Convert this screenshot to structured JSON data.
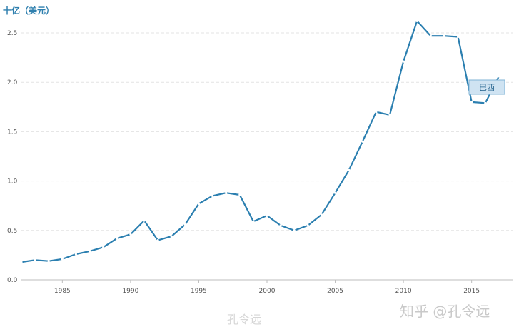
{
  "chart_data": {
    "type": "line",
    "unit_label": "十亿（美元）",
    "x": [
      1982,
      1983,
      1984,
      1985,
      1986,
      1987,
      1988,
      1989,
      1990,
      1991,
      1992,
      1993,
      1994,
      1995,
      1996,
      1997,
      1998,
      1999,
      2000,
      2001,
      2002,
      2003,
      2004,
      2005,
      2006,
      2007,
      2008,
      2009,
      2010,
      2011,
      2012,
      2013,
      2014,
      2015,
      2016,
      2017
    ],
    "series": [
      {
        "name": "巴西",
        "values": [
          0.18,
          0.2,
          0.19,
          0.21,
          0.26,
          0.29,
          0.33,
          0.42,
          0.46,
          0.6,
          0.4,
          0.44,
          0.56,
          0.77,
          0.85,
          0.88,
          0.86,
          0.59,
          0.65,
          0.55,
          0.5,
          0.55,
          0.66,
          0.88,
          1.11,
          1.4,
          1.7,
          1.67,
          2.21,
          2.62,
          2.47,
          2.47,
          2.46,
          1.8,
          1.79,
          2.06
        ],
        "color": "#2b7fb0"
      }
    ],
    "xlim": [
      1982,
      2018
    ],
    "ylim": [
      0,
      2.5
    ],
    "xticks": [
      "1985",
      "1990",
      "1995",
      "2000",
      "2005",
      "2010",
      "2015"
    ],
    "yticks": [
      "0.0",
      "0.5",
      "1.0",
      "1.5",
      "2.0",
      "2.5"
    ],
    "grid": "horizontal dashed"
  },
  "watermarks": {
    "zhihu": "知乎 @孔令远",
    "weibo": "孔令远"
  }
}
